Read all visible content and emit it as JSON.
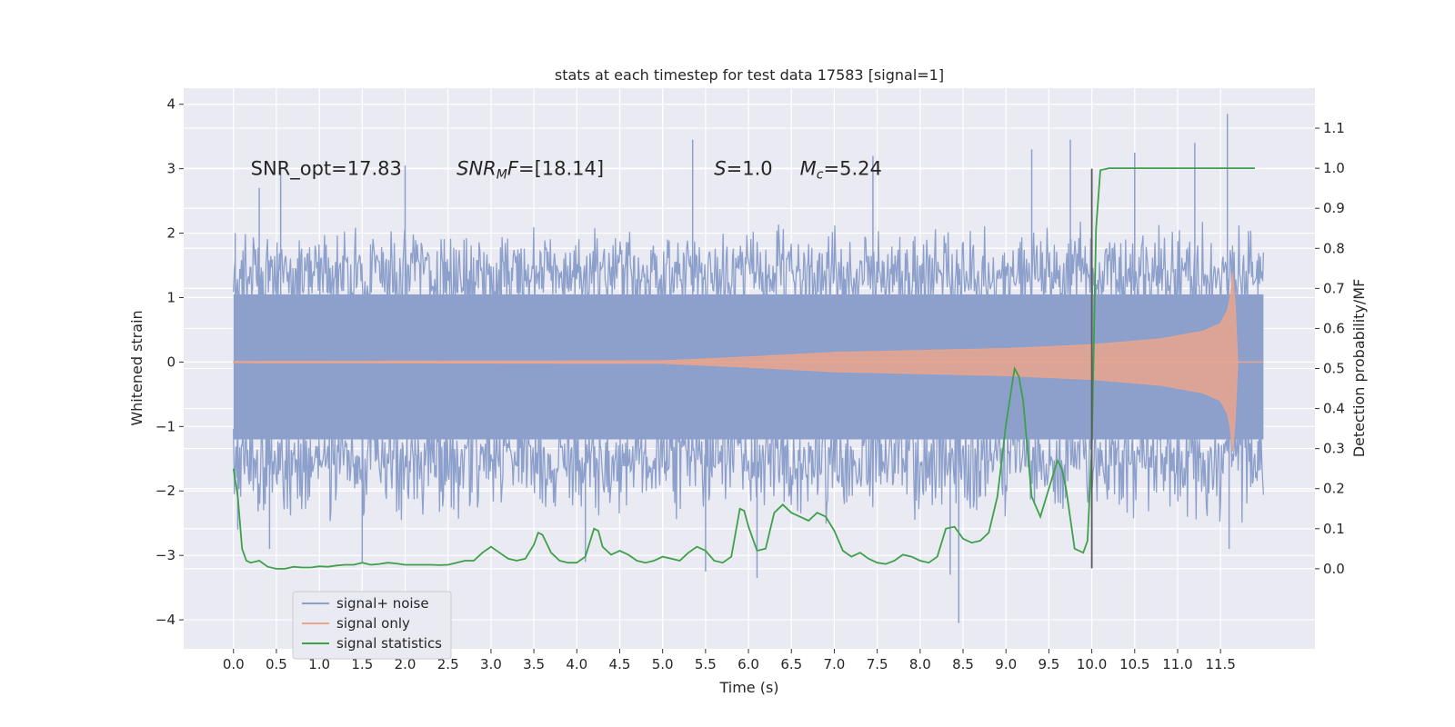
{
  "chart_data": {
    "type": "line",
    "title": "stats at each timestep for test data 17583 [signal=1]",
    "xlabel": "Time (s)",
    "ylabel": "Whitened strain",
    "y2label": "Detection probability/MF",
    "xlim": [
      -0.58,
      12.6
    ],
    "ylim": [
      -4.45,
      4.25
    ],
    "y2lim": [
      -0.2,
      1.2
    ],
    "xticks": [
      0.0,
      0.5,
      1.0,
      1.5,
      2.0,
      2.5,
      3.0,
      3.5,
      4.0,
      4.5,
      5.0,
      5.5,
      6.0,
      6.5,
      7.0,
      7.5,
      8.0,
      8.5,
      9.0,
      9.5,
      10.0,
      10.5,
      11.0,
      11.5
    ],
    "xtick_labels": [
      "0.0",
      "0.5",
      "1.0",
      "1.5",
      "2.0",
      "2.5",
      "3.0",
      "3.5",
      "4.0",
      "4.5",
      "5.0",
      "5.5",
      "6.0",
      "6.5",
      "7.0",
      "7.5",
      "8.0",
      "8.5",
      "9.0",
      "9.5",
      "10.0",
      "10.5",
      "11.0",
      "11.5"
    ],
    "yticks": [
      -4,
      -3,
      -2,
      -1,
      0,
      1,
      2,
      3,
      4
    ],
    "ytick_labels": [
      "−4",
      "−3",
      "−2",
      "−1",
      "0",
      "1",
      "2",
      "3",
      "4"
    ],
    "y2ticks": [
      0.0,
      0.1,
      0.2,
      0.3,
      0.4,
      0.5,
      0.6,
      0.7,
      0.8,
      0.9,
      1.0,
      1.1
    ],
    "y2tick_labels": [
      "0.0",
      "0.1",
      "0.2",
      "0.3",
      "0.4",
      "0.5",
      "0.6",
      "0.7",
      "0.8",
      "0.9",
      "1.0",
      "1.1"
    ],
    "legend": {
      "placement": "lower-left",
      "entries": [
        {
          "label": "signal+ noise",
          "color": "#8da0cb"
        },
        {
          "label": "signal only",
          "color": "#e9a58d"
        },
        {
          "label": "signal statistics",
          "color": "#3fa04b"
        }
      ]
    },
    "annotations": [
      {
        "x": 0.2,
        "y": 3.0,
        "parts": [
          {
            "t": "SNR_opt=17.83"
          }
        ]
      },
      {
        "x": 2.6,
        "y": 3.0,
        "parts": [
          {
            "t": "SNR",
            "i": true
          },
          {
            "t": "M",
            "i": true,
            "sub": true
          },
          {
            "t": "F=[18.14]",
            "i": false,
            "ital_first": true
          }
        ]
      },
      {
        "x": 5.6,
        "y": 3.0,
        "parts": [
          {
            "t": "S",
            "i": true
          },
          {
            "t": "=1.0"
          }
        ]
      },
      {
        "x": 6.6,
        "y": 3.0,
        "parts": [
          {
            "t": "M",
            "i": true
          },
          {
            "t": "c",
            "i": true,
            "sub": true
          },
          {
            "t": "=5.24"
          }
        ]
      }
    ],
    "series": [
      {
        "name": "signal+ noise",
        "kind": "noise",
        "x_range": [
          0.0,
          12.0
        ],
        "upper_base": [
          1.3,
          1.9
        ],
        "lower_base": [
          -1.4,
          -2.2
        ],
        "spikes_up": [
          [
            0.02,
            2.0
          ],
          [
            0.3,
            2.7
          ],
          [
            0.55,
            3.0
          ],
          [
            2.0,
            3.05
          ],
          [
            5.35,
            3.45
          ],
          [
            7.45,
            3.2
          ],
          [
            9.3,
            3.3
          ],
          [
            9.75,
            3.45
          ],
          [
            10.5,
            3.25
          ],
          [
            11.2,
            3.4
          ],
          [
            11.58,
            3.85
          ]
        ],
        "spikes_down": [
          [
            0.05,
            -2.6
          ],
          [
            0.42,
            -2.9
          ],
          [
            1.5,
            -3.1
          ],
          [
            4.1,
            -3.1
          ],
          [
            5.5,
            -3.25
          ],
          [
            6.1,
            -3.35
          ],
          [
            8.35,
            -3.3
          ],
          [
            8.45,
            -4.05
          ],
          [
            11.6,
            -2.9
          ]
        ]
      },
      {
        "name": "signal only",
        "kind": "chirp",
        "x_range": [
          0.0,
          11.7
        ],
        "amp_points": [
          [
            0.0,
            0.01
          ],
          [
            5.0,
            0.02
          ],
          [
            6.0,
            0.08
          ],
          [
            7.0,
            0.15
          ],
          [
            8.0,
            0.18
          ],
          [
            9.0,
            0.21
          ],
          [
            10.0,
            0.27
          ],
          [
            10.8,
            0.36
          ],
          [
            11.3,
            0.48
          ],
          [
            11.5,
            0.6
          ],
          [
            11.6,
            0.85
          ],
          [
            11.65,
            1.5
          ],
          [
            11.68,
            0.6
          ],
          [
            11.7,
            0.0
          ]
        ],
        "tail": [
          [
            11.7,
            0.0
          ],
          [
            12.0,
            0.0
          ]
        ]
      },
      {
        "name": "signal statistics",
        "kind": "prob",
        "x": [
          0.0,
          0.05,
          0.1,
          0.15,
          0.2,
          0.3,
          0.4,
          0.5,
          0.6,
          0.7,
          0.8,
          0.9,
          1.0,
          1.1,
          1.2,
          1.3,
          1.4,
          1.5,
          1.6,
          1.7,
          1.8,
          1.9,
          2.0,
          2.1,
          2.2,
          2.3,
          2.4,
          2.5,
          2.6,
          2.7,
          2.8,
          2.9,
          3.0,
          3.1,
          3.2,
          3.3,
          3.4,
          3.5,
          3.55,
          3.6,
          3.7,
          3.8,
          3.9,
          4.0,
          4.1,
          4.2,
          4.25,
          4.3,
          4.4,
          4.5,
          4.6,
          4.7,
          4.8,
          4.9,
          5.0,
          5.1,
          5.2,
          5.3,
          5.4,
          5.5,
          5.6,
          5.7,
          5.8,
          5.9,
          5.95,
          6.0,
          6.1,
          6.2,
          6.3,
          6.4,
          6.5,
          6.6,
          6.7,
          6.8,
          6.9,
          7.0,
          7.1,
          7.2,
          7.3,
          7.4,
          7.5,
          7.6,
          7.7,
          7.8,
          7.9,
          8.0,
          8.1,
          8.2,
          8.3,
          8.4,
          8.5,
          8.6,
          8.7,
          8.8,
          8.9,
          9.0,
          9.1,
          9.15,
          9.2,
          9.3,
          9.4,
          9.5,
          9.6,
          9.65,
          9.7,
          9.8,
          9.9,
          9.95,
          10.0,
          10.05,
          10.1,
          10.2,
          10.5,
          11.0,
          11.5,
          11.9
        ],
        "y": [
          0.25,
          0.18,
          0.05,
          0.02,
          0.015,
          0.02,
          0.005,
          0.0,
          0.0,
          0.005,
          0.003,
          0.003,
          0.006,
          0.005,
          0.008,
          0.01,
          0.01,
          0.015,
          0.01,
          0.012,
          0.015,
          0.013,
          0.01,
          0.01,
          0.01,
          0.01,
          0.009,
          0.01,
          0.015,
          0.02,
          0.02,
          0.04,
          0.055,
          0.04,
          0.025,
          0.02,
          0.025,
          0.06,
          0.09,
          0.085,
          0.04,
          0.02,
          0.015,
          0.015,
          0.03,
          0.1,
          0.095,
          0.055,
          0.035,
          0.045,
          0.035,
          0.02,
          0.015,
          0.02,
          0.03,
          0.025,
          0.02,
          0.04,
          0.055,
          0.045,
          0.02,
          0.015,
          0.03,
          0.15,
          0.145,
          0.105,
          0.045,
          0.05,
          0.14,
          0.16,
          0.14,
          0.13,
          0.12,
          0.14,
          0.13,
          0.095,
          0.045,
          0.03,
          0.04,
          0.025,
          0.015,
          0.012,
          0.02,
          0.035,
          0.03,
          0.02,
          0.015,
          0.03,
          0.1,
          0.105,
          0.075,
          0.065,
          0.07,
          0.09,
          0.18,
          0.36,
          0.5,
          0.48,
          0.42,
          0.18,
          0.13,
          0.2,
          0.27,
          0.25,
          0.2,
          0.05,
          0.04,
          0.07,
          0.3,
          0.85,
          0.995,
          1.0,
          1.0,
          1.0,
          1.0,
          1.0
        ]
      },
      {
        "name": "detection threshold marker",
        "kind": "vline",
        "x": 10.0,
        "y_range": [
          -3.2,
          3.0
        ],
        "color": "#5a5a5a"
      }
    ]
  }
}
